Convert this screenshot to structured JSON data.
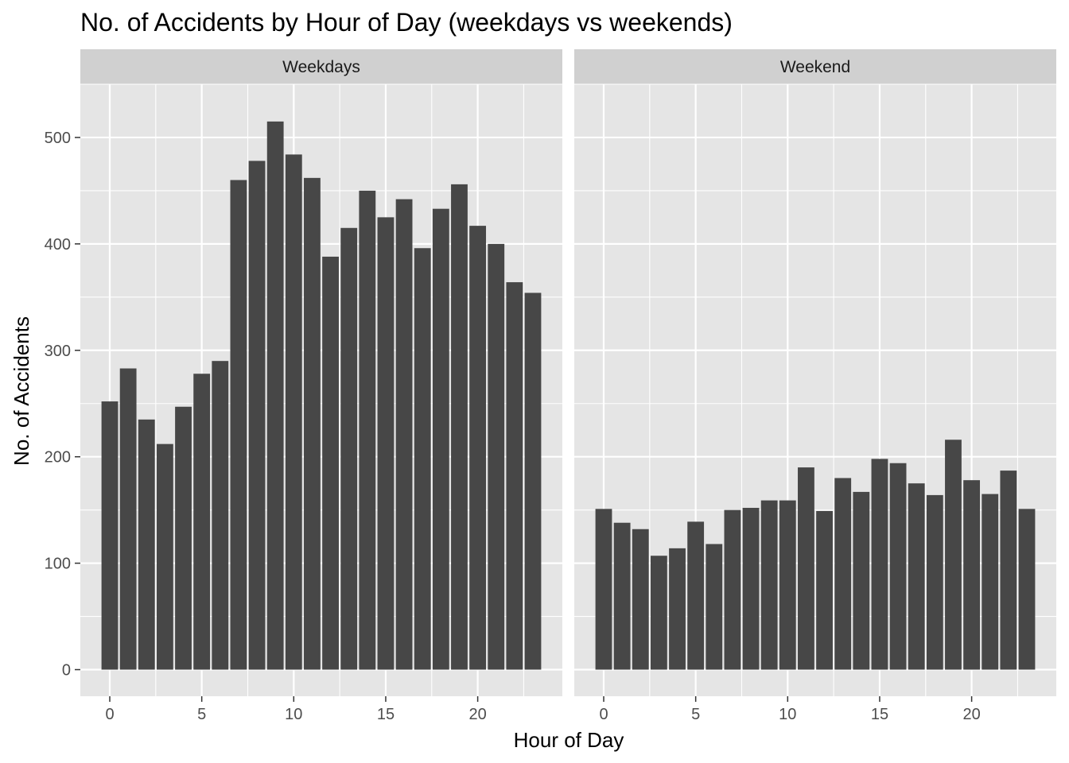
{
  "chart_data": {
    "type": "bar",
    "title": "No. of Accidents by Hour of Day (weekdays vs weekends)",
    "xlabel": "Hour of Day",
    "ylabel": "No. of Accidents",
    "x": [
      0,
      1,
      2,
      3,
      4,
      5,
      6,
      7,
      8,
      9,
      10,
      11,
      12,
      13,
      14,
      15,
      16,
      17,
      18,
      19,
      20,
      21,
      22,
      23
    ],
    "x_ticks": [
      "0",
      "5",
      "10",
      "15",
      "20"
    ],
    "y_ticks": [
      "0",
      "100",
      "200",
      "300",
      "400",
      "500"
    ],
    "ylim": [
      -25,
      550
    ],
    "xlim": [
      -1.6,
      24.6
    ],
    "grid": true,
    "facets": [
      {
        "name": "Weekdays",
        "values": [
          252,
          283,
          235,
          212,
          247,
          278,
          290,
          460,
          478,
          515,
          484,
          462,
          388,
          415,
          450,
          425,
          442,
          396,
          433,
          456,
          417,
          400,
          364,
          354
        ]
      },
      {
        "name": "Weekend",
        "values": [
          151,
          138,
          132,
          107,
          114,
          139,
          118,
          150,
          152,
          159,
          159,
          190,
          149,
          180,
          167,
          198,
          194,
          175,
          164,
          216,
          178,
          165,
          187,
          151
        ]
      }
    ]
  },
  "colors": {
    "panel_bg": "#e5e5e5",
    "strip_bg": "#d0d0d0",
    "bar": "#474747",
    "grid": "#ffffff",
    "tick": "#333333"
  }
}
